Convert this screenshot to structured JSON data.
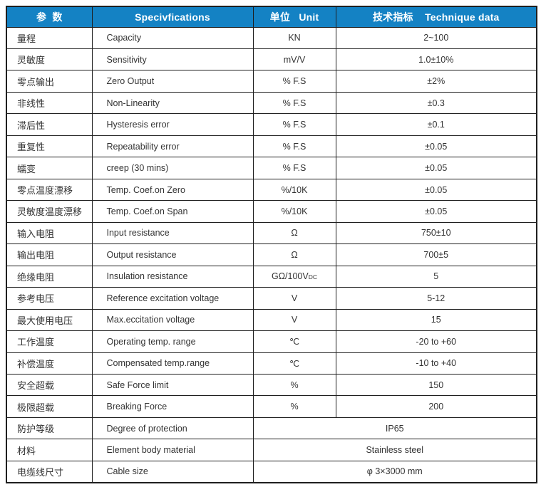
{
  "header": {
    "param": "参  数",
    "spec": "Specivfications",
    "unit": "单位   Unit",
    "tech": "技术指标    Technique data"
  },
  "rows": [
    {
      "cn": "量程",
      "en": "Capacity",
      "unit": "KN",
      "value": "2~100"
    },
    {
      "cn": "灵敏度",
      "en": "Sensitivity",
      "unit": "mV/V",
      "value": "1.0±10%"
    },
    {
      "cn": "零点输出",
      "en": "Zero Output",
      "unit": "% F.S",
      "value": "±2%"
    },
    {
      "cn": "非线性",
      "en": "Non-Linearity",
      "unit": "% F.S",
      "value": "±0.3"
    },
    {
      "cn": "滞后性",
      "en": "Hysteresis error",
      "unit": "% F.S",
      "value": "±0.1"
    },
    {
      "cn": "重复性",
      "en": "Repeatability error",
      "unit": "% F.S",
      "value": "±0.05"
    },
    {
      "cn": "蠕变",
      "en": "creep (30 mins)",
      "unit": "% F.S",
      "value": "±0.05"
    },
    {
      "cn": "零点温度漂移",
      "en": "Temp. Coef.on Zero",
      "unit": "%/10K",
      "value": "±0.05"
    },
    {
      "cn": "灵敏度温度漂移",
      "en": "Temp. Coef.on Span",
      "unit": "%/10K",
      "value": "±0.05"
    },
    {
      "cn": "输入电阻",
      "en": "Input resistance",
      "unit": "Ω",
      "value": "750±10"
    },
    {
      "cn": "输出电阻",
      "en": "Output resistance",
      "unit": "Ω",
      "value": "700±5"
    },
    {
      "cn": "绝缘电阻",
      "en": "Insulation resistance",
      "unit": "GΩ/100V",
      "unit_sub": "DC",
      "value": "5"
    },
    {
      "cn": "参考电压",
      "en": "Reference excitation voltage",
      "unit": "V",
      "value": "5-12"
    },
    {
      "cn": "最大使用电压",
      "en": "Max.eccitation voltage",
      "unit": "V",
      "value": "15"
    },
    {
      "cn": "工作温度",
      "en": "Operating temp. range",
      "unit": "℃",
      "value": "-20 to +60"
    },
    {
      "cn": "补偿温度",
      "en": "Compensated temp.range",
      "unit": "℃",
      "value": "-10 to +40"
    },
    {
      "cn": "安全超载",
      "en": "Safe Force limit",
      "unit": "%",
      "value": "150"
    },
    {
      "cn": "极限超载",
      "en": "Breaking Force",
      "unit": "%",
      "value": "200"
    },
    {
      "cn": "防护等级",
      "en": "Degree of protection",
      "merged": true,
      "value": "IP65"
    },
    {
      "cn": "材料",
      "en": "Element body material",
      "merged": true,
      "value": "Stainless steel"
    },
    {
      "cn": "电缆线尺寸",
      "en": "Cable size",
      "merged": true,
      "value": "φ 3×3000 mm"
    }
  ],
  "colors": {
    "header_bg": "#1482c4",
    "header_text": "#ffffff",
    "grid_border": "#1f1f1f",
    "body_text": "#333333"
  }
}
